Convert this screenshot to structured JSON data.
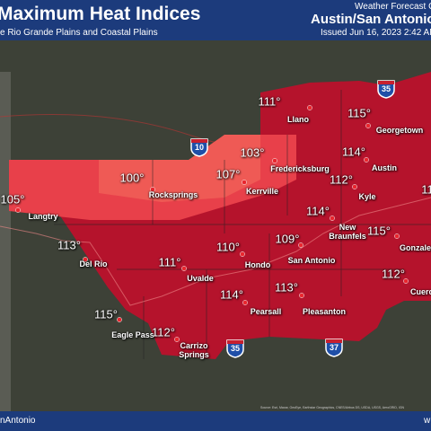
{
  "header": {
    "title": "Maximum Heat Indices",
    "subtitle": "e Rio Grande Plains and Coastal Plains",
    "office": "Weather Forecast O",
    "location": "Austin/San Antonio,",
    "issued": "Issued Jun 16, 2023 2:42 AM"
  },
  "footer": {
    "handle": "nAntonio",
    "right": "w",
    "source": "Source: Esri, Maxar, GeoEye, Earthstar Geographics, CNES/Airbus DS, USDA, USGS, AeroGRID, IGN"
  },
  "highways": [
    "35",
    "10",
    "35",
    "37"
  ],
  "edge_value": "11",
  "cities": [
    {
      "value": "111°",
      "name": "Llano"
    },
    {
      "value": "115°",
      "name": "Georgetown"
    },
    {
      "value": "114°",
      "name": "Austin"
    },
    {
      "value": "112°",
      "name": "Kyle"
    },
    {
      "value": "103°",
      "name": "Fredericksburg"
    },
    {
      "value": "107°",
      "name": "Kerrville"
    },
    {
      "value": "100°",
      "name": "Rocksprings"
    },
    {
      "value": "105°",
      "name": "Langtry"
    },
    {
      "value": "114°",
      "name": "New Braunfels"
    },
    {
      "value": "115°",
      "name": "Gonzales"
    },
    {
      "value": "109°",
      "name": "San Antonio"
    },
    {
      "value": "110°",
      "name": "Hondo"
    },
    {
      "value": "111°",
      "name": "Uvalde"
    },
    {
      "value": "113°",
      "name": "Del Rio"
    },
    {
      "value": "115°",
      "name": "Eagle Pass"
    },
    {
      "value": "112°",
      "name": "Carrizo Springs"
    },
    {
      "value": "114°",
      "name": "Pearsall"
    },
    {
      "value": "113°",
      "name": "Pleasanton"
    },
    {
      "value": "112°",
      "name": "Cuero"
    }
  ]
}
